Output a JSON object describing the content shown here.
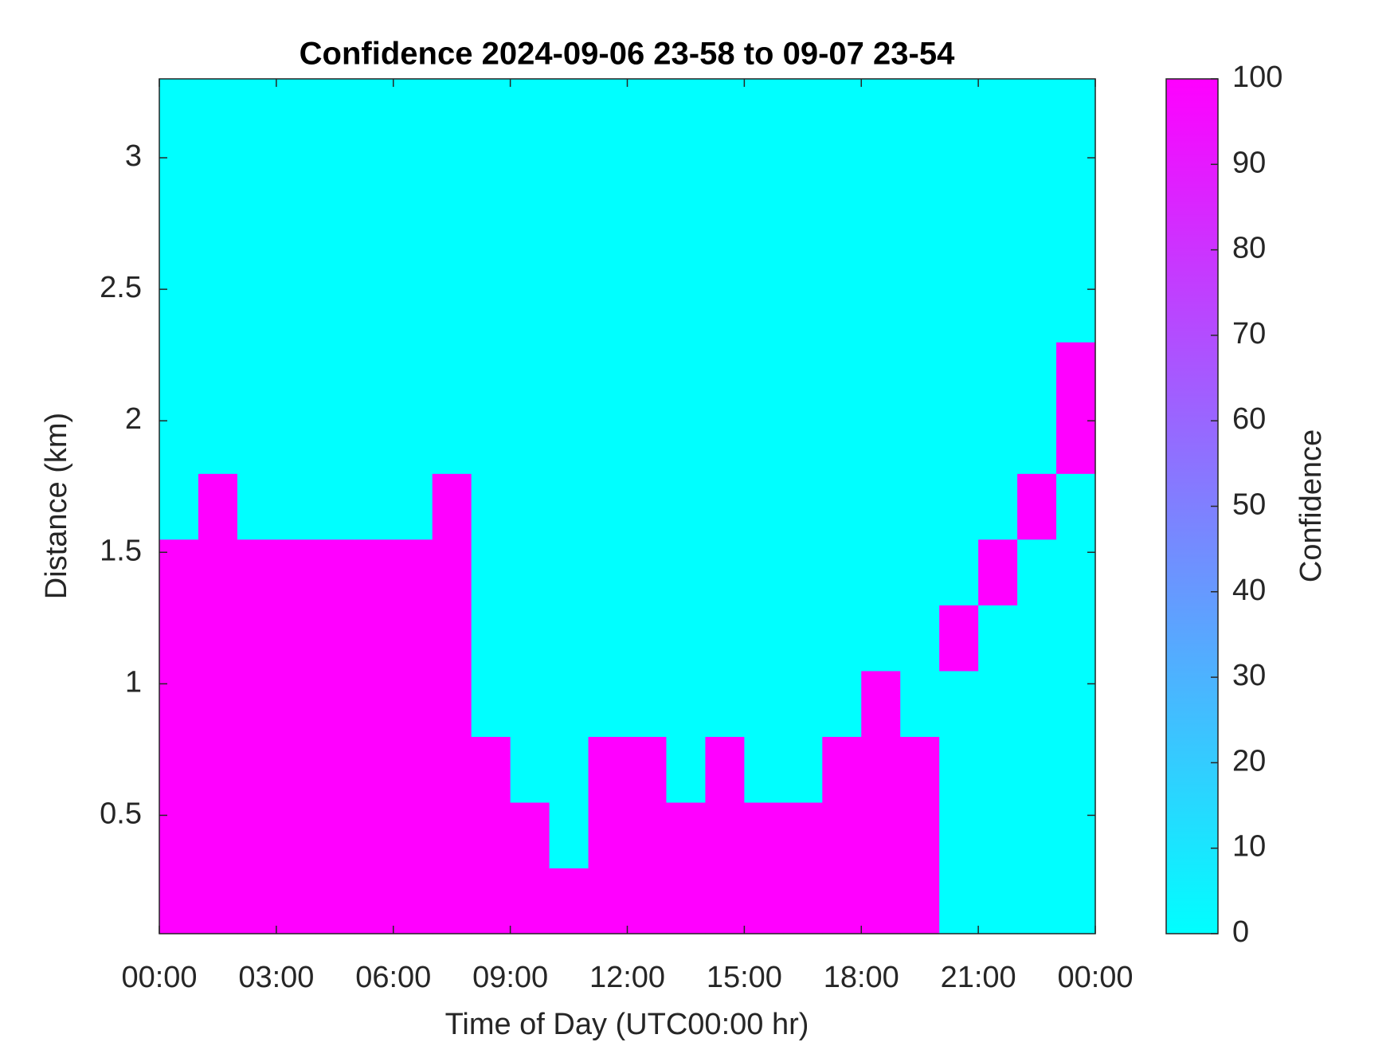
{
  "chart_data": {
    "type": "heatmap",
    "title": "Confidence 2024-09-06 23-58 to 09-07 23-54",
    "x_label": "Time of Day (UTC00:00 hr)",
    "y_label": "Distance (km)",
    "colorbar_label": "Confidence",
    "xbins": [
      0,
      1,
      2,
      3,
      4,
      5,
      6,
      7,
      8,
      9,
      10,
      11,
      12,
      13,
      14,
      15,
      16,
      17,
      18,
      19,
      20,
      21,
      22,
      23,
      24
    ],
    "ybins": [
      0.05,
      0.3,
      0.55,
      0.8,
      1.05,
      1.3,
      1.55,
      1.8,
      2.05,
      2.3,
      2.55,
      2.8,
      3.05,
      3.3
    ],
    "z": [
      [
        100,
        100,
        100,
        100,
        100,
        100,
        100,
        100,
        100,
        100,
        100,
        100,
        100,
        100,
        100,
        100,
        100,
        100,
        100,
        100,
        0,
        0,
        0,
        0
      ],
      [
        100,
        100,
        100,
        100,
        100,
        100,
        100,
        100,
        100,
        100,
        0,
        100,
        100,
        100,
        100,
        100,
        100,
        100,
        100,
        100,
        0,
        0,
        0,
        0
      ],
      [
        100,
        100,
        100,
        100,
        100,
        100,
        100,
        100,
        100,
        0,
        0,
        100,
        100,
        0,
        100,
        0,
        0,
        100,
        100,
        100,
        0,
        0,
        0,
        0
      ],
      [
        100,
        100,
        100,
        100,
        100,
        100,
        100,
        100,
        0,
        0,
        0,
        0,
        0,
        0,
        0,
        0,
        0,
        0,
        100,
        0,
        0,
        0,
        0,
        0
      ],
      [
        100,
        100,
        100,
        100,
        100,
        100,
        100,
        100,
        0,
        0,
        0,
        0,
        0,
        0,
        0,
        0,
        0,
        0,
        0,
        0,
        100,
        0,
        0,
        0
      ],
      [
        100,
        100,
        100,
        100,
        100,
        100,
        100,
        100,
        0,
        0,
        0,
        0,
        0,
        0,
        0,
        0,
        0,
        0,
        0,
        0,
        0,
        100,
        0,
        0
      ],
      [
        0,
        100,
        0,
        0,
        0,
        0,
        0,
        100,
        0,
        0,
        0,
        0,
        0,
        0,
        0,
        0,
        0,
        0,
        0,
        0,
        0,
        0,
        100,
        0
      ],
      [
        0,
        0,
        0,
        0,
        0,
        0,
        0,
        0,
        0,
        0,
        0,
        0,
        0,
        0,
        0,
        0,
        0,
        0,
        0,
        0,
        0,
        0,
        0,
        100
      ],
      [
        0,
        0,
        0,
        0,
        0,
        0,
        0,
        0,
        0,
        0,
        0,
        0,
        0,
        0,
        0,
        0,
        0,
        0,
        0,
        0,
        0,
        0,
        0,
        100
      ],
      [
        0,
        0,
        0,
        0,
        0,
        0,
        0,
        0,
        0,
        0,
        0,
        0,
        0,
        0,
        0,
        0,
        0,
        0,
        0,
        0,
        0,
        0,
        0,
        0
      ],
      [
        0,
        0,
        0,
        0,
        0,
        0,
        0,
        0,
        0,
        0,
        0,
        0,
        0,
        0,
        0,
        0,
        0,
        0,
        0,
        0,
        0,
        0,
        0,
        0
      ],
      [
        0,
        0,
        0,
        0,
        0,
        0,
        0,
        0,
        0,
        0,
        0,
        0,
        0,
        0,
        0,
        0,
        0,
        0,
        0,
        0,
        0,
        0,
        0,
        0
      ],
      [
        0,
        0,
        0,
        0,
        0,
        0,
        0,
        0,
        0,
        0,
        0,
        0,
        0,
        0,
        0,
        0,
        0,
        0,
        0,
        0,
        0,
        0,
        0,
        0
      ]
    ],
    "xlim": [
      0,
      24
    ],
    "xticks": [
      {
        "value": 0,
        "label": "00:00"
      },
      {
        "value": 3,
        "label": "03:00"
      },
      {
        "value": 6,
        "label": "06:00"
      },
      {
        "value": 9,
        "label": "09:00"
      },
      {
        "value": 12,
        "label": "12:00"
      },
      {
        "value": 15,
        "label": "15:00"
      },
      {
        "value": 18,
        "label": "18:00"
      },
      {
        "value": 21,
        "label": "21:00"
      },
      {
        "value": 24,
        "label": "00:00"
      }
    ],
    "ylim": [
      0.05,
      3.3
    ],
    "yticks": [
      0.5,
      1,
      1.5,
      2,
      2.5,
      3
    ],
    "clim": [
      0,
      100
    ],
    "cticks": [
      0,
      10,
      20,
      30,
      40,
      50,
      60,
      70,
      80,
      90,
      100
    ],
    "colormap": [
      "#00ffff",
      "#ff00ff"
    ]
  }
}
